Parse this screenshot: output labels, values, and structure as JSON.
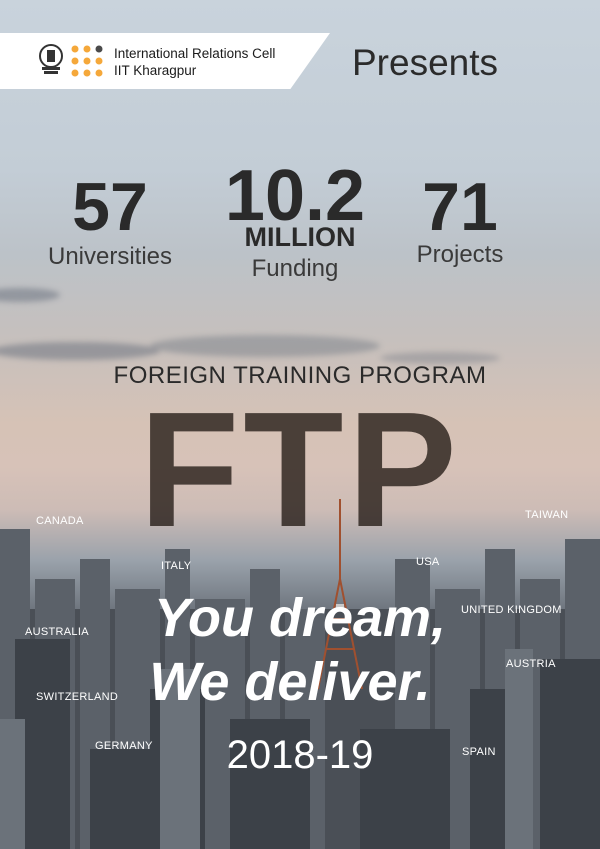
{
  "header": {
    "org_line1": "International Relations Cell",
    "org_line2": "IIT Kharagpur",
    "presents": "Presents"
  },
  "stats": [
    {
      "value": "57",
      "label": "Universities"
    },
    {
      "value": "10.2",
      "unit": "MILLION",
      "label": "Funding"
    },
    {
      "value": "71",
      "label": "Projects"
    }
  ],
  "program": {
    "title": "FOREIGN TRAINING PROGRAM",
    "acronym": "FTP"
  },
  "countries": [
    "CANADA",
    "TAIWAN",
    "ITALY",
    "USA",
    "AUSTRALIA",
    "UNITED KINGDOM",
    "AUSTRIA",
    "SWITZERLAND",
    "GERMANY",
    "SPAIN"
  ],
  "tagline": {
    "line1": "You dream,",
    "line2": "We deliver."
  },
  "year": "2018-19",
  "colors": {
    "dot_orange": "#f5a83a",
    "dot_dark": "#4a4a4a",
    "text_dark": "#2a2a2a"
  },
  "icons": [
    "iit-kgp-emblem-icon",
    "irc-dots-logo-icon"
  ]
}
